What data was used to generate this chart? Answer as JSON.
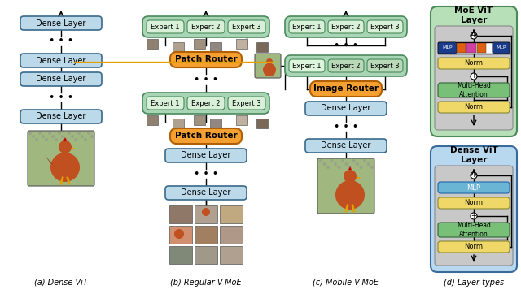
{
  "bg_color": "#ffffff",
  "fig_width": 6.4,
  "fig_height": 3.62,
  "dpi": 100,
  "colors": {
    "dense_blue": "#bcd9ea",
    "expert_green_outer": "#a8d5b5",
    "expert_green_inner": "#d8f0d8",
    "expert_green_inner2": "#c8e8c8",
    "router_orange": "#f5a030",
    "norm_yellow": "#f0d868",
    "mlp_blue": "#6ab4d4",
    "mha_green": "#78c078",
    "moe_box_green": "#b8e0b8",
    "dense_box_blue": "#b8d8f0",
    "inner_gray": "#cccccc",
    "mlp_bar_dark": "#1a3a8a",
    "mlp_bar_pink": "#d040a0",
    "mlp_bar_orange": "#e06010"
  },
  "section_labels": [
    "(a) Dense ViT",
    "(b) Regular V-MoE",
    "(c) Mobile V-MoE",
    "(d) Layer types"
  ]
}
